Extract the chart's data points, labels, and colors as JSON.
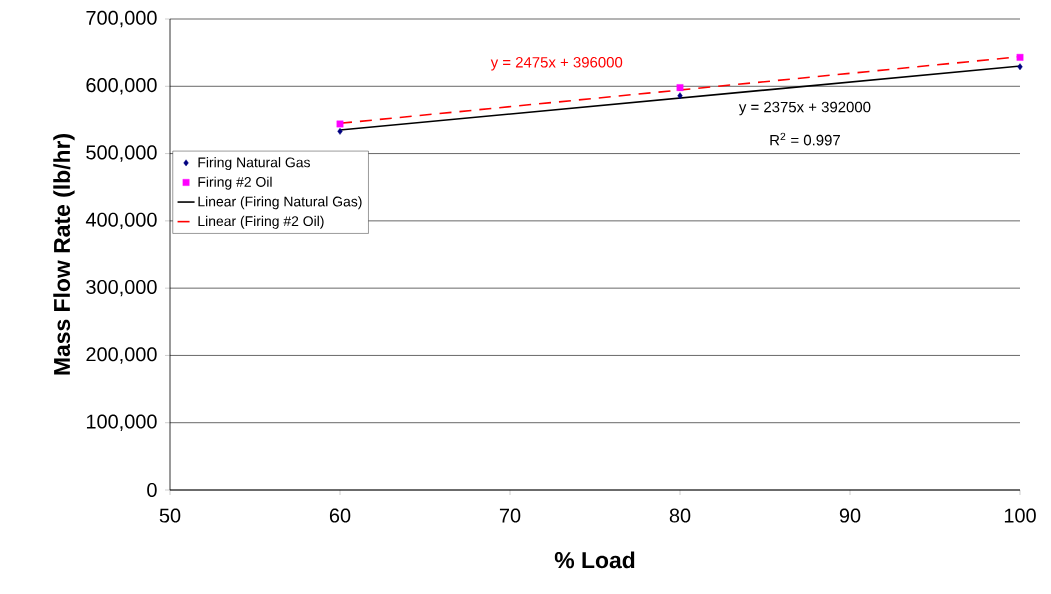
{
  "chart_data": {
    "type": "scatter",
    "xlabel": "% Load",
    "ylabel": "Mass Flow Rate (lb/hr)",
    "series": [
      {
        "name": "Firing Natural Gas",
        "color": "#000080",
        "marker": "diamond",
        "x": [
          60,
          80,
          100
        ],
        "values": [
          533000,
          586000,
          629000
        ]
      },
      {
        "name": "Firing #2 Oil",
        "color": "#ff00ff",
        "marker": "square",
        "x": [
          60,
          80,
          100
        ],
        "values": [
          544000,
          598000,
          643000
        ]
      },
      {
        "name": "Linear (Firing Natural Gas)",
        "type": "line",
        "color": "#000000",
        "line_style": "solid",
        "x": [
          60,
          100
        ],
        "values": [
          535000,
          630000
        ]
      },
      {
        "name": "Linear (Firing #2 Oil)",
        "type": "line",
        "color": "#ff0000",
        "line_style": "dashed",
        "x": [
          60,
          100
        ],
        "values": [
          545000,
          644000
        ]
      }
    ],
    "annotations": [
      "y = 2475x + 396000",
      "y = 2375x + 392000",
      "R$^{2}$ = 0.997"
    ],
    "xlim": [
      50,
      100
    ],
    "xticks": [
      50,
      60,
      70,
      80,
      90,
      100
    ],
    "ylim": [
      0,
      700000
    ],
    "yticks": [
      {
        "value": 0,
        "label": "0"
      },
      {
        "value": 100000,
        "label": "100,000"
      },
      {
        "value": 200000,
        "label": "200,000"
      },
      {
        "value": 300000,
        "label": "300,000"
      },
      {
        "value": 400000,
        "label": "400,000"
      },
      {
        "value": 500000,
        "label": "500,000"
      },
      {
        "value": 600000,
        "label": "600,000"
      },
      {
        "value": 700000,
        "label": "700,000"
      }
    ],
    "grid": "y",
    "legend": "left"
  }
}
